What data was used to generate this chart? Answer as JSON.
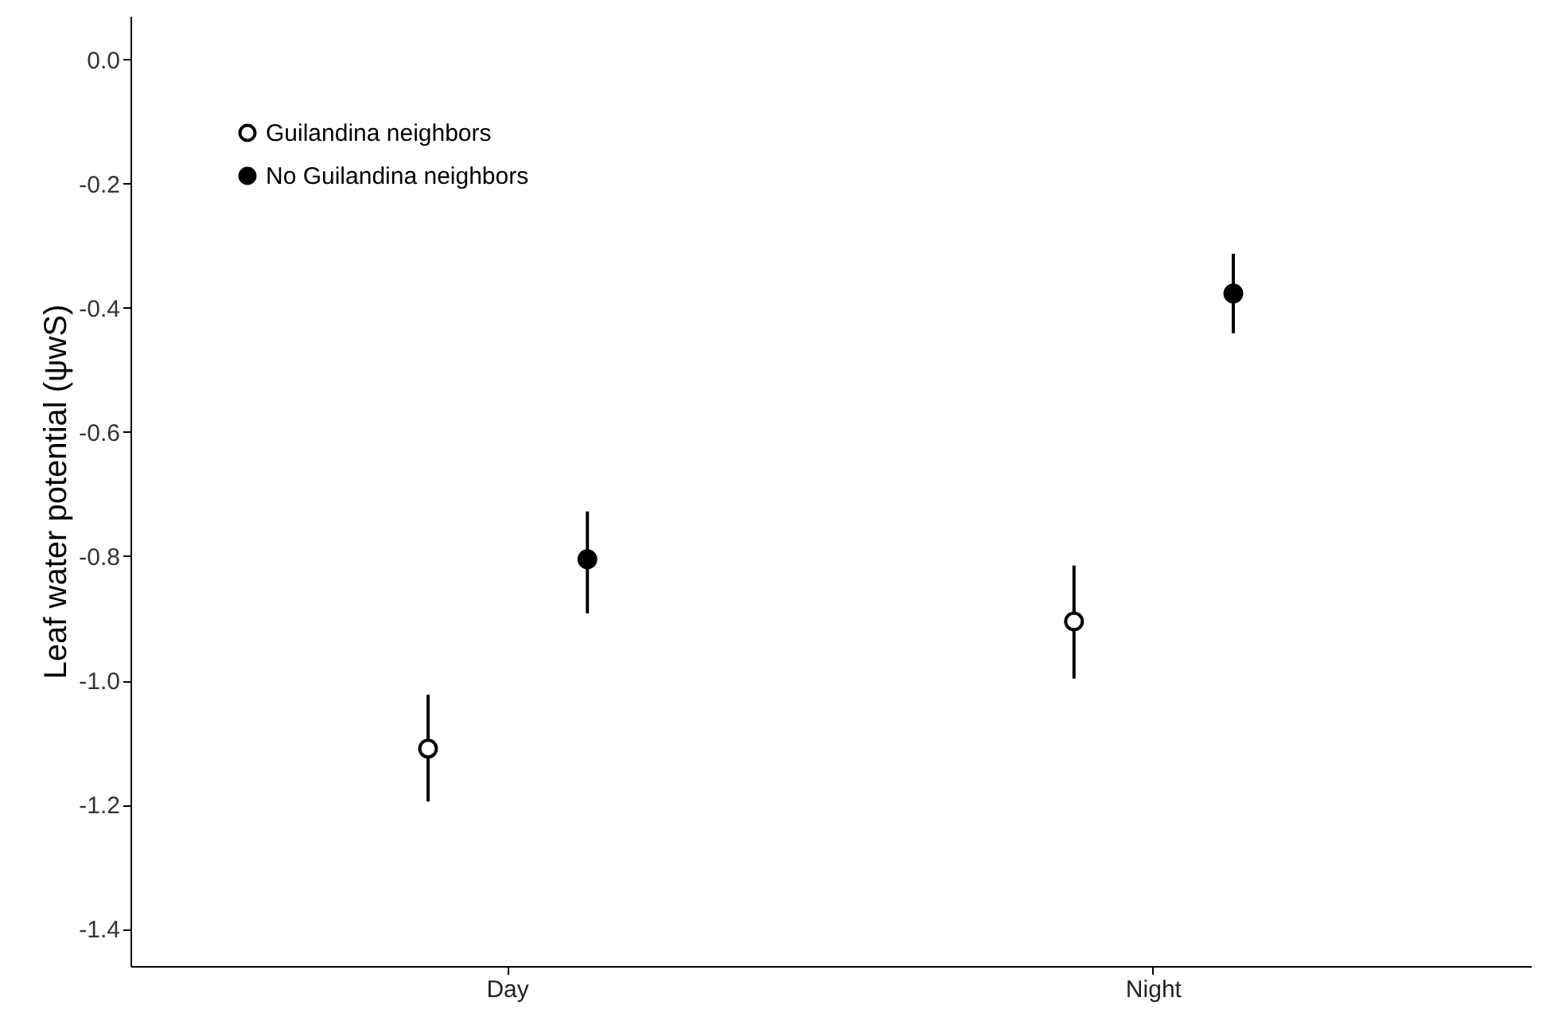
{
  "chart_data": {
    "type": "scatter",
    "ylabel": "Leaf water potential (ψwS)",
    "categories": [
      "Day",
      "Night"
    ],
    "ylim": [
      -1.46,
      0.07
    ],
    "yticks": [
      {
        "value": 0,
        "label": "0.0"
      },
      {
        "value": -0.2,
        "label": "-0.2"
      },
      {
        "value": -0.4,
        "label": "-0.4"
      },
      {
        "value": -0.6,
        "label": "-0.6"
      },
      {
        "value": -0.8,
        "label": "-0.8"
      },
      {
        "value": -1.0,
        "label": "-1.0"
      },
      {
        "value": -1.2,
        "label": "-1.2"
      },
      {
        "value": -1.4,
        "label": "-1.4"
      }
    ],
    "grid": false,
    "legend": "top left",
    "marker": "circle",
    "series": [
      {
        "name": "Guilandina neighbors",
        "color": "#000000",
        "values": [
          -1.11,
          -0.905
        ],
        "errors": [
          [
            -1.195,
            -1.023
          ],
          [
            -0.997,
            -0.815
          ]
        ]
      },
      {
        "name": "No Guilandina neighbors",
        "color": "#000000",
        "values": [
          -0.805,
          -0.377
        ],
        "errors": [
          [
            -0.892,
            -0.728
          ],
          [
            -0.441,
            -0.313
          ]
        ]
      }
    ]
  }
}
